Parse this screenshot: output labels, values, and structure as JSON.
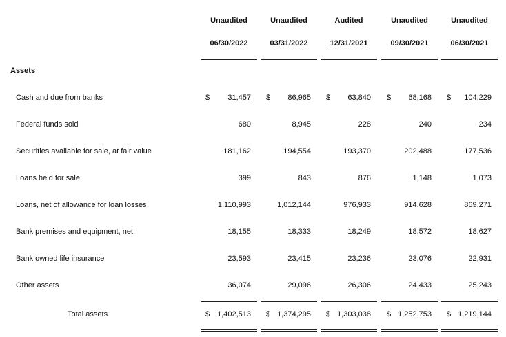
{
  "columns": [
    {
      "status": "Unaudited",
      "date": "06/30/2022"
    },
    {
      "status": "Unaudited",
      "date": "03/31/2022"
    },
    {
      "status": "Audited",
      "date": "12/31/2021"
    },
    {
      "status": "Unaudited",
      "date": "09/30/2021"
    },
    {
      "status": "Unaudited",
      "date": "06/30/2021"
    }
  ],
  "section_title": "Assets",
  "currency_symbol": "$",
  "rows": [
    {
      "label": "Cash and due from banks",
      "values": [
        "31,457",
        "86,965",
        "63,840",
        "68,168",
        "104,229"
      ]
    },
    {
      "label": "Federal funds sold",
      "values": [
        "680",
        "8,945",
        "228",
        "240",
        "234"
      ]
    },
    {
      "label": "Securities available for sale, at fair value",
      "values": [
        "181,162",
        "194,554",
        "193,370",
        "202,488",
        "177,536"
      ]
    },
    {
      "label": "Loans held for sale",
      "values": [
        "399",
        "843",
        "876",
        "1,148",
        "1,073"
      ]
    },
    {
      "label": "Loans, net of allowance for loan losses",
      "values": [
        "1,110,993",
        "1,012,144",
        "976,933",
        "914,628",
        "869,271"
      ]
    },
    {
      "label": "Bank premises and equipment, net",
      "values": [
        "18,155",
        "18,333",
        "18,249",
        "18,572",
        "18,627"
      ]
    },
    {
      "label": "Bank owned life insurance",
      "values": [
        "23,593",
        "23,415",
        "23,236",
        "23,076",
        "22,931"
      ]
    },
    {
      "label": "Other assets",
      "values": [
        "36,074",
        "29,096",
        "26,306",
        "24,433",
        "25,243"
      ]
    }
  ],
  "total": {
    "label": "Total assets",
    "values": [
      "1,402,513",
      "1,374,295",
      "1,303,038",
      "1,252,753",
      "1,219,144"
    ]
  }
}
